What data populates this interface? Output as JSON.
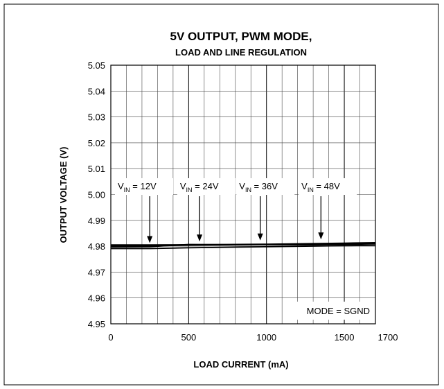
{
  "chart_data": {
    "type": "line",
    "title": "5V OUTPUT, PWM MODE,",
    "subtitle": "LOAD AND LINE REGULATION",
    "xlabel": "LOAD CURRENT (mA)",
    "ylabel": "OUTPUT VOLTAGE (V)",
    "xlim": [
      0,
      1700
    ],
    "ylim": [
      4.95,
      5.05
    ],
    "x_ticks": [
      0,
      500,
      1000,
      1500,
      1700
    ],
    "x_tick_labels": [
      "0",
      "500",
      "1000",
      "1500",
      "1700"
    ],
    "y_ticks": [
      4.95,
      4.96,
      4.97,
      4.98,
      4.99,
      5.0,
      5.01,
      5.02,
      5.03,
      5.04,
      5.05
    ],
    "y_tick_labels": [
      "4.95",
      "4.96",
      "4.97",
      "4.98",
      "4.99",
      "5.00",
      "5.01",
      "5.02",
      "5.03",
      "5.04",
      "5.05"
    ],
    "grid": true,
    "annotation": "MODE = SGND",
    "series": [
      {
        "name": "VIN = 12V",
        "label_main": "V",
        "label_sub": "IN",
        "label_rest": " = 12V",
        "label_x": 0,
        "arrow_x": 250,
        "x": [
          0,
          250,
          500,
          750,
          1000,
          1250,
          1500,
          1700
        ],
        "values": [
          4.9791,
          4.9791,
          4.9794,
          4.9796,
          4.9798,
          4.98,
          4.9802,
          4.9804
        ]
      },
      {
        "name": "VIN = 24V",
        "label_main": "V",
        "label_sub": "IN",
        "label_rest": " = 24V",
        "label_x": 400,
        "arrow_x": 570,
        "x": [
          0,
          250,
          500,
          750,
          1000,
          1250,
          1500,
          1700
        ],
        "values": [
          4.9797,
          4.9798,
          4.9807,
          4.9806,
          4.9806,
          4.9805,
          4.9807,
          4.9809
        ]
      },
      {
        "name": "VIN = 36V",
        "label_main": "V",
        "label_sub": "IN",
        "label_rest": " = 36V",
        "label_x": 780,
        "arrow_x": 960,
        "x": [
          0,
          250,
          500,
          750,
          1000,
          1250,
          1500,
          1700
        ],
        "values": [
          4.9801,
          4.9801,
          4.9804,
          4.9805,
          4.9807,
          4.9808,
          4.981,
          4.9812
        ]
      },
      {
        "name": "VIN = 48V",
        "label_main": "V",
        "label_sub": "IN",
        "label_rest": " = 48V",
        "label_x": 1180,
        "arrow_x": 1350,
        "x": [
          0,
          250,
          500,
          750,
          1000,
          1250,
          1500,
          1700
        ],
        "values": [
          4.9805,
          4.9805,
          4.9806,
          4.9807,
          4.9808,
          4.981,
          4.9812,
          4.9814
        ]
      }
    ]
  }
}
